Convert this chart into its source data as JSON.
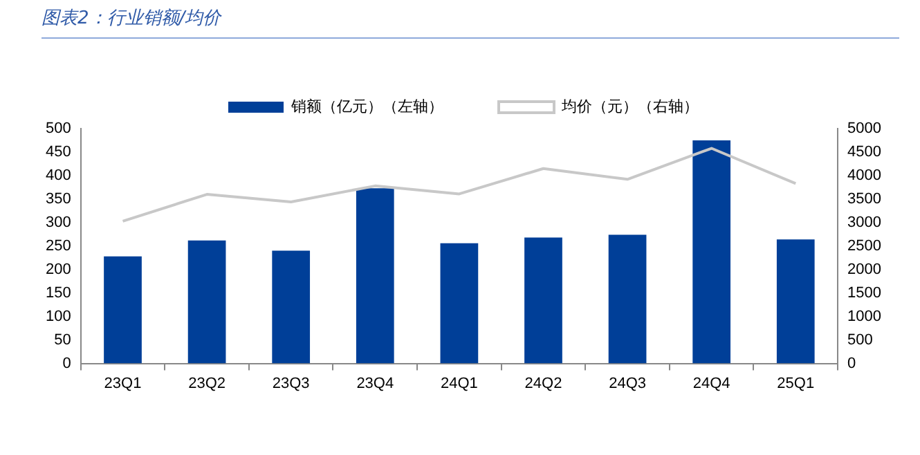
{
  "chart_data": {
    "type": "bar",
    "title": "图表2：行业销额/均价",
    "categories": [
      "23Q1",
      "23Q2",
      "23Q3",
      "23Q4",
      "24Q1",
      "24Q2",
      "24Q3",
      "24Q4",
      "25Q1"
    ],
    "series": [
      {
        "name": "销额（亿元）（左轴）",
        "color": "#003f98",
        "values": [
          228,
          262,
          240,
          373,
          256,
          268,
          274,
          475,
          264
        ]
      },
      {
        "name": "均价（元）（右轴）",
        "type": "line",
        "axis": "y2",
        "color": "#c8c8c8",
        "values": [
          3030,
          3600,
          3440,
          3780,
          3610,
          4150,
          3920,
          4580,
          3830
        ]
      }
    ],
    "ylim": [
      0,
      500
    ],
    "yticks": [
      0,
      50,
      100,
      150,
      200,
      250,
      300,
      350,
      400,
      450,
      500
    ],
    "y2lim": [
      0,
      5000
    ],
    "y2ticks": [
      0,
      500,
      1000,
      1500,
      2000,
      2500,
      3000,
      3500,
      4000,
      4500,
      5000
    ],
    "legend": "top",
    "grid": false,
    "marker": "none"
  }
}
